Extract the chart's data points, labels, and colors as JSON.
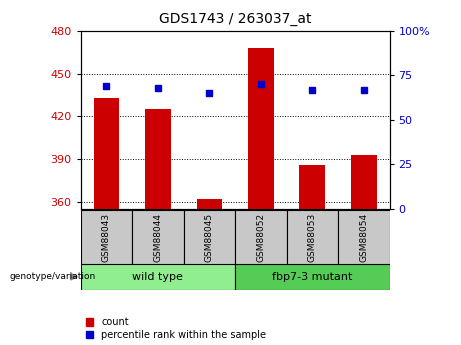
{
  "title": "GDS1743 / 263037_at",
  "samples": [
    "GSM88043",
    "GSM88044",
    "GSM88045",
    "GSM88052",
    "GSM88053",
    "GSM88054"
  ],
  "counts": [
    433,
    425,
    362,
    468,
    386,
    393
  ],
  "percentiles": [
    69,
    68,
    65,
    70,
    67,
    67
  ],
  "ylim_left": [
    355,
    480
  ],
  "ylim_right": [
    0,
    100
  ],
  "yticks_left": [
    360,
    390,
    420,
    450,
    480
  ],
  "yticks_right": [
    0,
    25,
    50,
    75,
    100
  ],
  "bar_color": "#CC0000",
  "dot_color": "#0000CC",
  "tick_color_left": "#CC0000",
  "tick_color_right": "#0000CC",
  "group_row_color_wt": "#90EE90",
  "group_row_color_mut": "#55CC55",
  "sample_bg_color": "#C8C8C8",
  "wild_type_label": "wild type",
  "mutant_label": "fbp7-3 mutant",
  "genotype_label": "genotype/variation",
  "legend_count": "count",
  "legend_percentile": "percentile rank within the sample"
}
